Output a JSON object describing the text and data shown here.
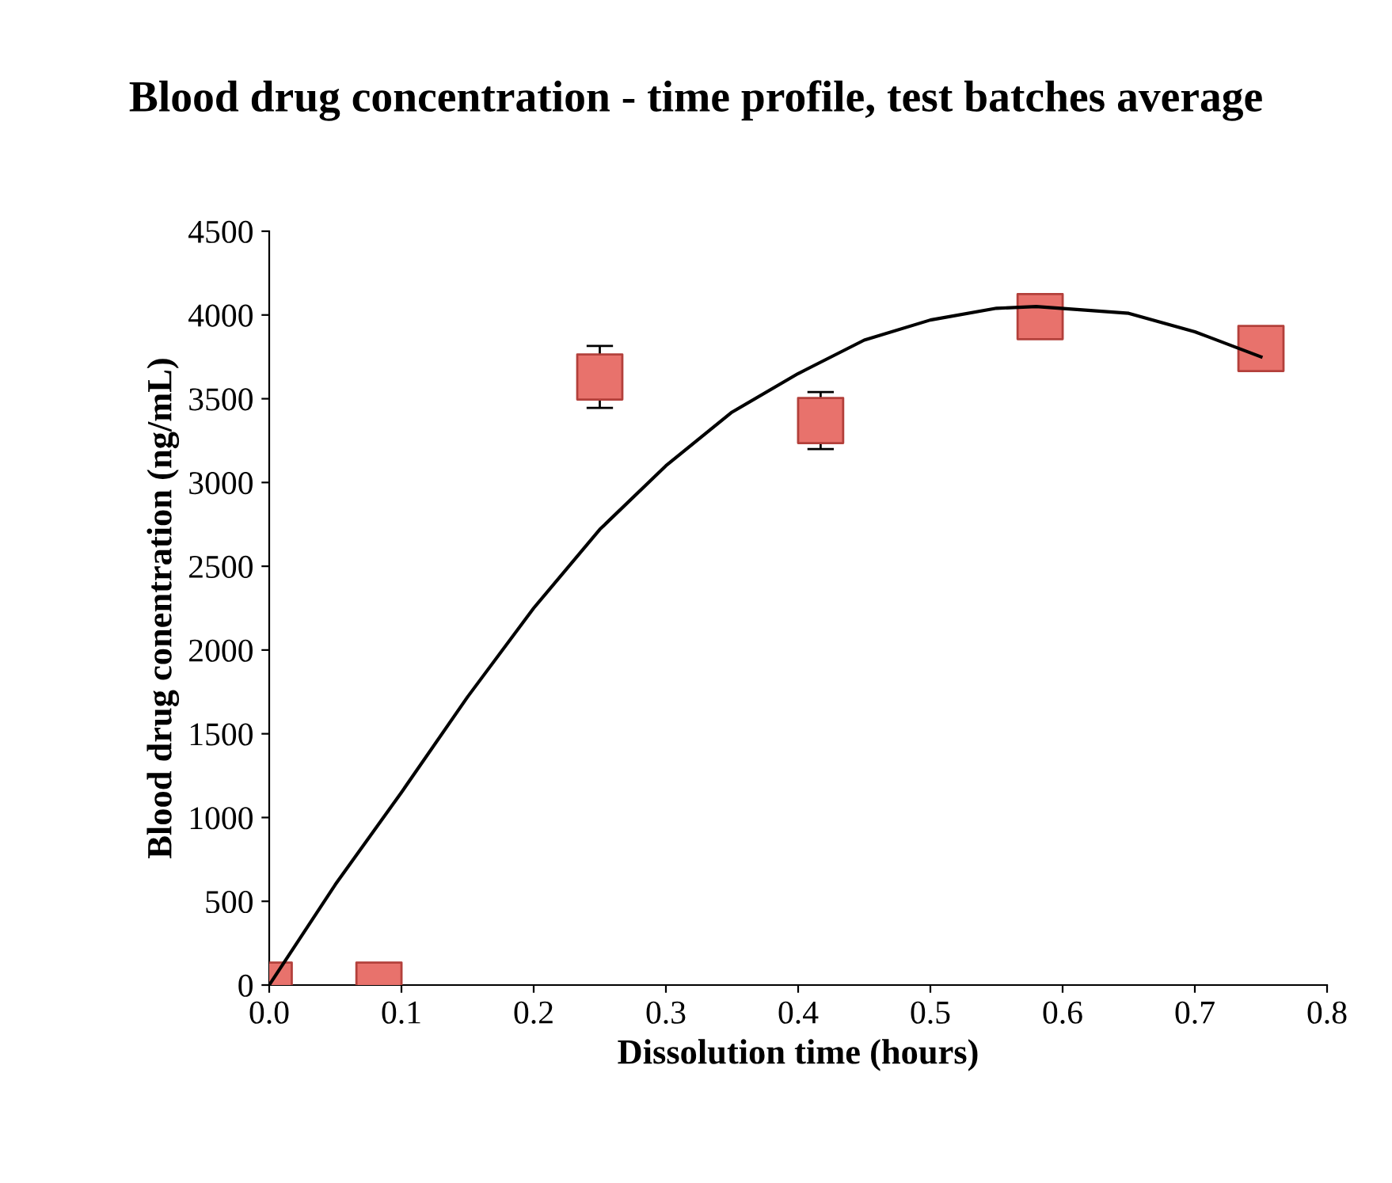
{
  "chart_data": {
    "type": "scatter",
    "title": "Blood drug concentration - time profile, test batches average",
    "xlabel": "Dissolution time (hours)",
    "ylabel": "Blood drug conentration (ng/mL)",
    "x": [
      0.0,
      0.083,
      0.25,
      0.417,
      0.583,
      0.75
    ],
    "series": [
      {
        "color": "#e8726c",
        "values": [
          0,
          0,
          3630,
          3370,
          3990,
          3800
        ],
        "errors": [
          null,
          null,
          185,
          170,
          null,
          null
        ],
        "marker": "square"
      },
      {
        "type": "line",
        "color": "#000000",
        "x": [
          0.0,
          0.05,
          0.1,
          0.15,
          0.2,
          0.25,
          0.3,
          0.35,
          0.4,
          0.45,
          0.5,
          0.55,
          0.58,
          0.65,
          0.7,
          0.75
        ],
        "values": [
          0,
          600,
          1150,
          1720,
          2250,
          2720,
          3100,
          3420,
          3650,
          3850,
          3970,
          4040,
          4050,
          4010,
          3900,
          3750
        ],
        "marker": "none",
        "line_style": "solid"
      }
    ],
    "xlim": [
      0.0,
      0.8
    ],
    "xticks": [
      {
        "value": 0.0,
        "label": "0.0"
      },
      0.1,
      0.2,
      0.3,
      0.4,
      0.5,
      0.6,
      0.7,
      0.8
    ],
    "ylim": [
      0,
      4500
    ],
    "yticks": [
      0,
      500,
      1000,
      1500,
      2000,
      2500,
      3000,
      3500,
      4000,
      4500
    ],
    "grid": false,
    "legend": false
  }
}
